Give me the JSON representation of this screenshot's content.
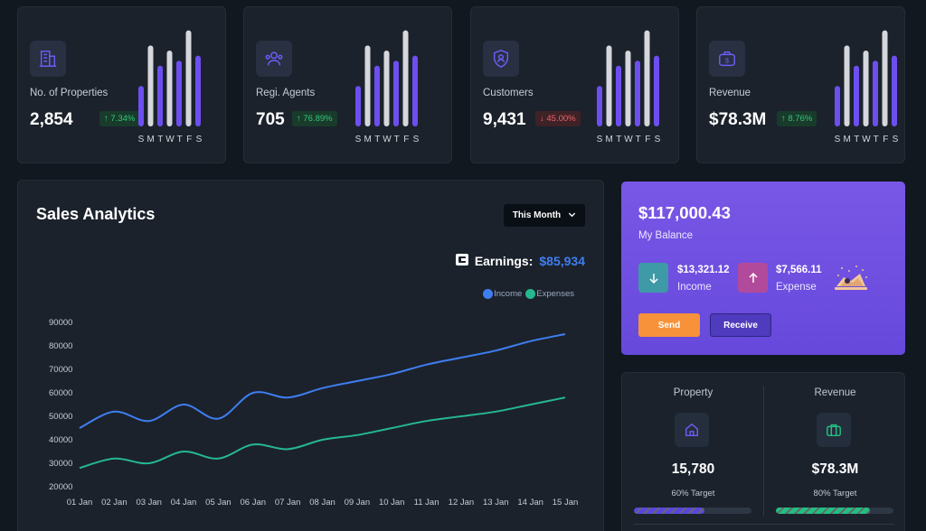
{
  "stats": [
    {
      "label": "No. of Properties",
      "value": "2,854",
      "change": "7.34%",
      "trend": "up",
      "icon": "building-icon",
      "bars": [
        40,
        80,
        60,
        75,
        65,
        95,
        70
      ],
      "bar_colors": [
        "#6d4ff0",
        "#d6d7dc",
        "#6d4ff0",
        "#d6d7dc",
        "#6d4ff0",
        "#d6d7dc",
        "#6d4ff0"
      ],
      "days": [
        "S",
        "M",
        "T",
        "W",
        "T",
        "F",
        "S"
      ]
    },
    {
      "label": "Regi. Agents",
      "value": "705",
      "change": "76.89%",
      "trend": "up",
      "icon": "users-icon",
      "bars": [
        40,
        80,
        60,
        75,
        65,
        95,
        70
      ],
      "bar_colors": [
        "#6d4ff0",
        "#d6d7dc",
        "#6d4ff0",
        "#d6d7dc",
        "#6d4ff0",
        "#d6d7dc",
        "#6d4ff0"
      ],
      "days": [
        "S",
        "M",
        "T",
        "W",
        "T",
        "F",
        "S"
      ]
    },
    {
      "label": "Customers",
      "value": "9,431",
      "change": "45.00%",
      "trend": "down",
      "icon": "shield-user-icon",
      "bars": [
        40,
        80,
        60,
        75,
        65,
        95,
        70
      ],
      "bar_colors": [
        "#6d4ff0",
        "#d6d7dc",
        "#6d4ff0",
        "#d6d7dc",
        "#6d4ff0",
        "#d6d7dc",
        "#6d4ff0"
      ],
      "days": [
        "S",
        "M",
        "T",
        "W",
        "T",
        "F",
        "S"
      ]
    },
    {
      "label": "Revenue",
      "value": "$78.3M",
      "change": "8.76%",
      "trend": "up",
      "icon": "money-bag-icon",
      "bars": [
        40,
        80,
        60,
        75,
        65,
        95,
        70
      ],
      "bar_colors": [
        "#6d4ff0",
        "#d6d7dc",
        "#6d4ff0",
        "#d6d7dc",
        "#6d4ff0",
        "#d6d7dc",
        "#6d4ff0"
      ],
      "days": [
        "S",
        "M",
        "T",
        "W",
        "T",
        "F",
        "S"
      ]
    }
  ],
  "sales": {
    "title": "Sales Analytics",
    "period": "This Month",
    "earnings_label": "Earnings:",
    "earnings_value": "$85,934"
  },
  "chart_data": {
    "type": "line",
    "x": [
      "01 Jan",
      "02 Jan",
      "03 Jan",
      "04 Jan",
      "05 Jan",
      "06 Jan",
      "07 Jan",
      "08 Jan",
      "09 Jan",
      "10 Jan",
      "11 Jan",
      "12 Jan",
      "13 Jan",
      "14 Jan",
      "15 Jan"
    ],
    "series": [
      {
        "name": "Income",
        "color": "#3f7ef0",
        "values": [
          45000,
          52000,
          48000,
          55000,
          49000,
          60000,
          58000,
          62000,
          65000,
          68000,
          72000,
          75000,
          78000,
          82000,
          85000
        ]
      },
      {
        "name": "Expenses",
        "color": "#25b890",
        "values": [
          28000,
          32000,
          30000,
          35000,
          32000,
          38000,
          36000,
          40000,
          42000,
          45000,
          48000,
          50000,
          52000,
          55000,
          58000
        ]
      }
    ],
    "yticks": [
      20000,
      30000,
      40000,
      50000,
      60000,
      70000,
      80000,
      90000
    ],
    "ylim": [
      20000,
      90000
    ],
    "legend": "top-right",
    "grid": false
  },
  "balance": {
    "amount": "$117,000.43",
    "label": "My Balance",
    "income_amount": "$13,321.12",
    "income_label": "Income",
    "expense_amount": "$7,566.11",
    "expense_label": "Expense",
    "send_label": "Send",
    "receive_label": "Receive",
    "income_color": "#3f9aa8",
    "expense_color": "#b24a9b"
  },
  "targets": [
    {
      "title": "Property",
      "value": "15,780",
      "target": "60% Target",
      "progress": 0.6,
      "color": "#5b45e0",
      "icon": "home-icon"
    },
    {
      "title": "Revenue",
      "value": "$78.3M",
      "target": "80% Target",
      "progress": 0.8,
      "color": "#22c07f",
      "icon": "briefcase-icon"
    }
  ]
}
